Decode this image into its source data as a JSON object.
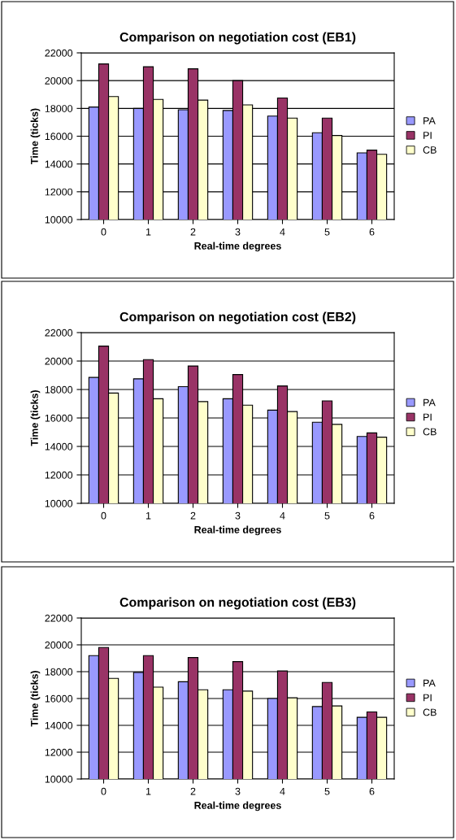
{
  "chart_data": [
    {
      "type": "bar",
      "title": "Comparison on negotiation cost (EB1)",
      "xlabel": "Real-time degrees",
      "ylabel": "Time (ticks)",
      "categories": [
        "0",
        "1",
        "2",
        "3",
        "4",
        "5",
        "6"
      ],
      "ylim": [
        10000,
        22000
      ],
      "yticks": [
        10000,
        12000,
        14000,
        16000,
        18000,
        20000,
        22000
      ],
      "grid": "y",
      "legend": "right",
      "series": [
        {
          "name": "PA",
          "color": "#9999ff",
          "values": [
            18100,
            18000,
            17900,
            17850,
            17450,
            16250,
            14800
          ]
        },
        {
          "name": "PI",
          "color": "#993366",
          "values": [
            21200,
            21000,
            20850,
            20000,
            18750,
            17300,
            15000
          ]
        },
        {
          "name": "CB",
          "color": "#ffffcc",
          "values": [
            18850,
            18650,
            18600,
            18250,
            17300,
            16050,
            14700
          ]
        }
      ]
    },
    {
      "type": "bar",
      "title": "Comparison on negotiation cost (EB2)",
      "xlabel": "Real-time degrees",
      "ylabel": "Time (ticks)",
      "categories": [
        "0",
        "1",
        "2",
        "3",
        "4",
        "5",
        "6"
      ],
      "ylim": [
        10000,
        22000
      ],
      "yticks": [
        10000,
        12000,
        14000,
        16000,
        18000,
        20000,
        22000
      ],
      "grid": "y",
      "legend": "right",
      "series": [
        {
          "name": "PA",
          "color": "#9999ff",
          "values": [
            18850,
            18750,
            18200,
            17350,
            16550,
            15700,
            14700
          ]
        },
        {
          "name": "PI",
          "color": "#993366",
          "values": [
            21050,
            20100,
            19650,
            19050,
            18250,
            17200,
            14950
          ]
        },
        {
          "name": "CB",
          "color": "#ffffcc",
          "values": [
            17750,
            17350,
            17150,
            16900,
            16450,
            15550,
            14650
          ]
        }
      ]
    },
    {
      "type": "bar",
      "title": "Comparison on negotiation cost (EB3)",
      "xlabel": "Real-time degrees",
      "ylabel": "Time (ticks)",
      "categories": [
        "0",
        "1",
        "2",
        "3",
        "4",
        "5",
        "6"
      ],
      "ylim": [
        10000,
        22000
      ],
      "yticks": [
        10000,
        12000,
        14000,
        16000,
        18000,
        20000,
        22000
      ],
      "grid": "y",
      "legend": "right",
      "series": [
        {
          "name": "PA",
          "color": "#9999ff",
          "values": [
            19200,
            17950,
            17250,
            16650,
            16000,
            15400,
            14600
          ]
        },
        {
          "name": "PI",
          "color": "#993366",
          "values": [
            19800,
            19200,
            19050,
            18750,
            18050,
            17200,
            15000
          ]
        },
        {
          "name": "CB",
          "color": "#ffffcc",
          "values": [
            17500,
            16850,
            16650,
            16550,
            16050,
            15450,
            14600
          ]
        }
      ]
    }
  ]
}
